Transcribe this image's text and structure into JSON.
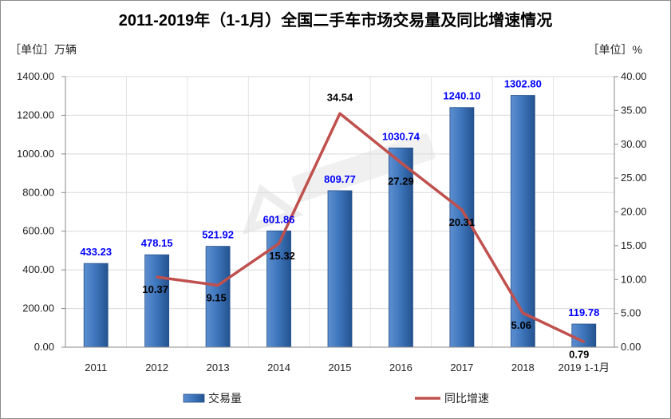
{
  "chart_data": {
    "type": "bar",
    "title": "2011-2019年（1-1月）全国二手车市场交易量及同比增速情况",
    "left_unit": "［单位］万辆",
    "right_unit": "［单位］%",
    "categories": [
      "2011",
      "2012",
      "2013",
      "2014",
      "2015",
      "2016",
      "2017",
      "2018",
      "2019 1-1月"
    ],
    "series": [
      {
        "name": "交易量",
        "type": "bar",
        "axis": "left",
        "values": [
          433.23,
          478.15,
          521.92,
          601.86,
          809.77,
          1030.74,
          1240.1,
          1302.8,
          119.78
        ],
        "labels": [
          "433.23",
          "478.15",
          "521.92",
          "601.86",
          "809.77",
          "1030.74",
          "1240.10",
          "1302.80",
          "119.78"
        ]
      },
      {
        "name": "同比增速",
        "type": "line",
        "axis": "right",
        "values": [
          null,
          10.37,
          9.15,
          15.32,
          34.54,
          27.29,
          20.31,
          5.06,
          0.79
        ],
        "labels": [
          "",
          "10.37",
          "9.15",
          "15.32",
          "34.54",
          "27.29",
          "20.31",
          "5.06",
          "0.79"
        ]
      }
    ],
    "y_left": {
      "min": 0,
      "max": 1400,
      "step": 200,
      "ticks": [
        "0.00",
        "200.00",
        "400.00",
        "600.00",
        "800.00",
        "1000.00",
        "1200.00",
        "1400.00"
      ]
    },
    "y_right": {
      "min": 0,
      "max": 40,
      "step": 5,
      "ticks": [
        "0.00",
        "5.00",
        "10.00",
        "15.00",
        "20.00",
        "25.00",
        "30.00",
        "35.00",
        "40.00"
      ]
    },
    "grid": true,
    "legend_position": "bottom",
    "colors": {
      "bar": "#3c73b6",
      "bar_dark": "#244f8a",
      "line": "#c0504d",
      "bar_label": "#0000ff",
      "line_label": "#000000"
    }
  }
}
